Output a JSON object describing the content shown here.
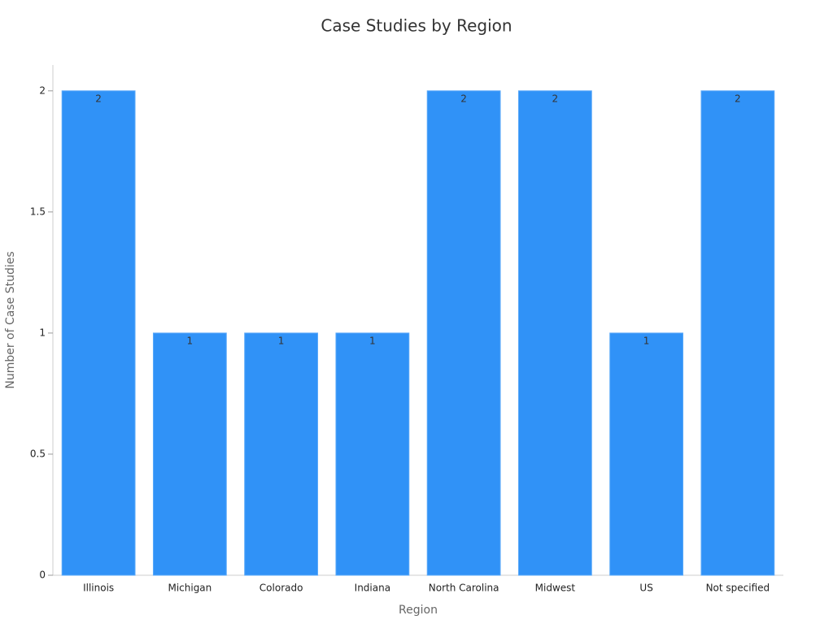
{
  "chart_data": {
    "type": "bar",
    "title": "Case Studies by Region",
    "x_label": "Region",
    "y_label": "Number of Case Studies",
    "categories": [
      "Illinois",
      "Michigan",
      "Colorado",
      "Indiana",
      "North Carolina",
      "Midwest",
      "US",
      "Not specified"
    ],
    "values": [
      2,
      1,
      1,
      1,
      2,
      2,
      1,
      2
    ],
    "color": "#3092f7",
    "ylim": [
      0,
      2.1
    ],
    "yticks": [
      0,
      0.5,
      1,
      1.5,
      2
    ],
    "grid": false
  }
}
